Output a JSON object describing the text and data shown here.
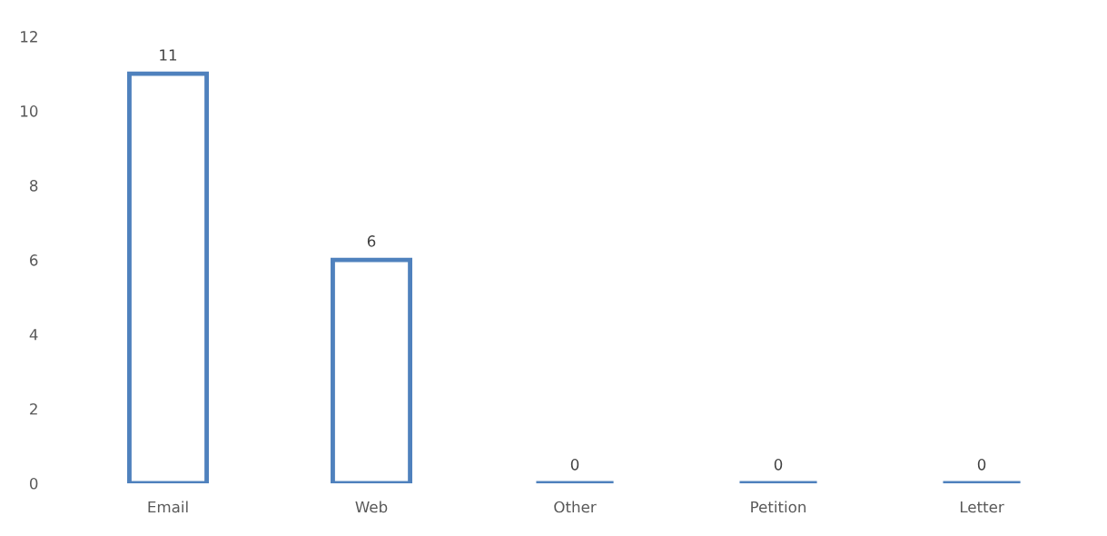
{
  "chart_data": {
    "type": "bar",
    "categories": [
      "Email",
      "Web",
      "Other",
      "Petition",
      "Letter"
    ],
    "values": [
      11,
      6,
      0,
      0,
      0
    ],
    "color": "#4f81bd",
    "ylim": [
      0,
      12
    ],
    "yticks": [
      0,
      2,
      4,
      6,
      8,
      10,
      12
    ],
    "grid": false,
    "data_labels": true
  }
}
